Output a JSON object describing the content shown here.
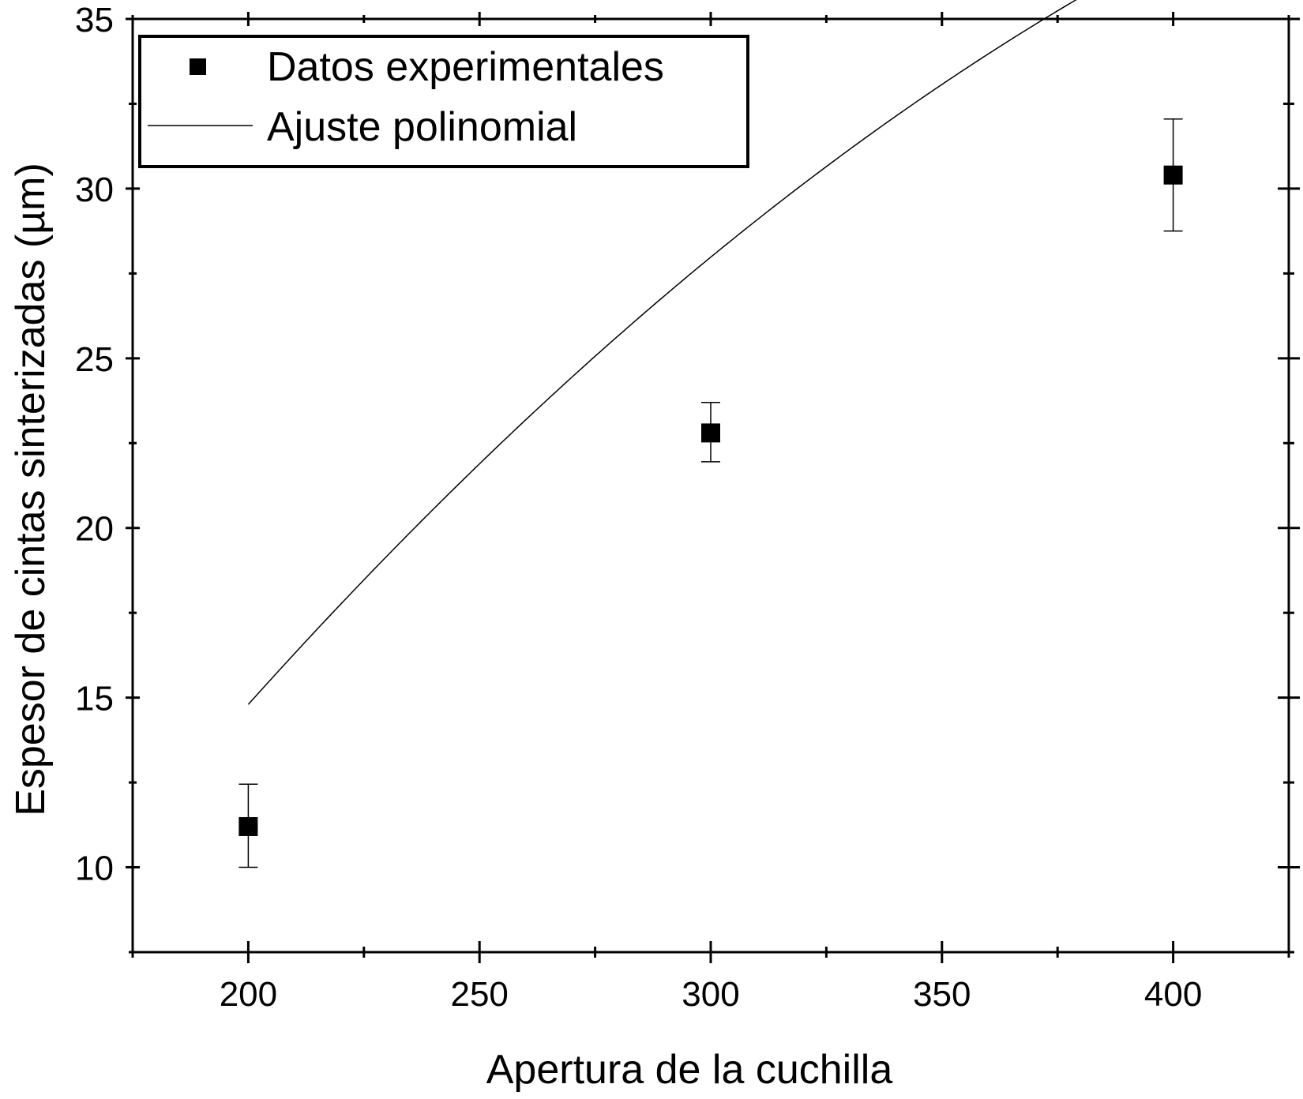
{
  "chart_data": {
    "type": "scatter",
    "title": "",
    "xlabel": "Apertura de la cuchilla",
    "ylabel": "Espesor de cintas sinterizadas (µm)",
    "xlim": [
      175,
      425
    ],
    "ylim": [
      7.5,
      35
    ],
    "x_ticks": [
      200,
      250,
      300,
      350,
      400
    ],
    "x_tick_labels": [
      "200",
      "250",
      "300",
      "350",
      "400"
    ],
    "x_minor_ticks": [
      175,
      225,
      275,
      325,
      375,
      425
    ],
    "y_ticks": [
      10,
      15,
      20,
      25,
      30,
      35
    ],
    "y_tick_labels": [
      "10",
      "15",
      "20",
      "25",
      "30",
      "35"
    ],
    "y_minor_ticks": [
      7.5,
      12.5,
      17.5,
      22.5,
      27.5,
      32.5
    ],
    "grid": false,
    "legend_position": "top-left",
    "series": [
      {
        "name": "Datos experimentales",
        "kind": "points",
        "marker": "square",
        "color": "#000000",
        "x": [
          200,
          300,
          400
        ],
        "y": [
          11.2,
          22.8,
          30.4
        ],
        "error_low": [
          10.0,
          21.95,
          28.75
        ],
        "error_high": [
          12.45,
          23.7,
          32.05
        ]
      },
      {
        "name": "Ajuste polinomial",
        "kind": "line",
        "color": "#000000",
        "coefficients": [
          -23.56,
          0.2318,
          -0.0002
        ]
      }
    ]
  }
}
